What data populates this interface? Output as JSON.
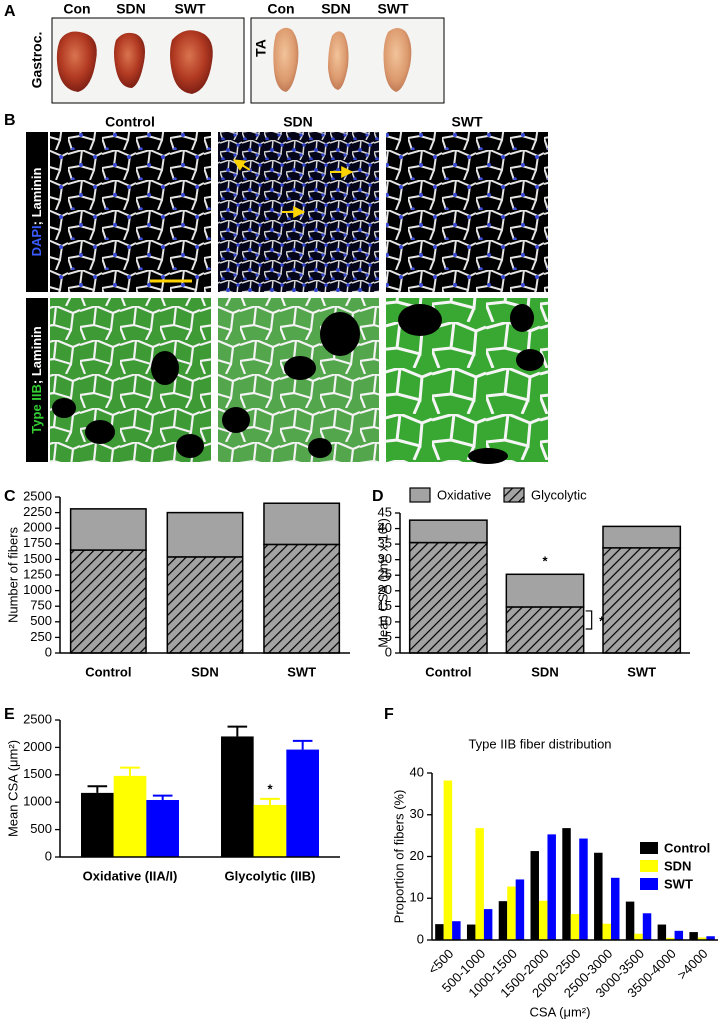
{
  "panel_labels": [
    "A",
    "B",
    "C",
    "D",
    "E",
    "F"
  ],
  "panel_a": {
    "left": {
      "label": "Gastroc.",
      "columns": [
        "Con",
        "SDN",
        "SWT"
      ]
    },
    "right": {
      "label": "TA",
      "columns": [
        "Con",
        "SDN",
        "SWT"
      ]
    }
  },
  "panel_b": {
    "columns": [
      "Control",
      "SDN",
      "SWT"
    ],
    "rows": [
      [
        "DAPI",
        "; Laminin"
      ],
      [
        "Type IIB",
        "; Laminin"
      ]
    ]
  },
  "chart_data": [
    {
      "type": "bar",
      "stacked": true,
      "ylabel": "Number of fibers",
      "categories": [
        "Control",
        "SDN",
        "SWT"
      ],
      "series": [
        {
          "color": "#a3a3a3",
          "hatch": true,
          "values": [
            1650,
            1540,
            1740
          ]
        },
        {
          "color": "#a3a3a3",
          "values": [
            660,
            710,
            660
          ]
        }
      ],
      "ylim": [
        0,
        2500
      ],
      "yticks": [
        0,
        250,
        500,
        750,
        1000,
        1250,
        1500,
        1750,
        2000,
        2250,
        2500
      ]
    },
    {
      "type": "bar",
      "stacked": true,
      "ylabel": "Mean CSA (μm² x 10³)",
      "categories": [
        "Control",
        "SDN",
        "SWT"
      ],
      "series": [
        {
          "name": "Glycolytic",
          "color": "#a3a3a3",
          "hatch": true,
          "values": [
            35.5,
            14.8,
            33.8
          ]
        },
        {
          "name": "Oxidative",
          "color": "#a3a3a3",
          "values": [
            7.2,
            10.5,
            6.9
          ]
        }
      ],
      "ylim": [
        0,
        45
      ],
      "yticks": [
        0,
        5,
        10,
        15,
        20,
        25,
        30,
        35,
        40,
        45
      ],
      "legend": "top",
      "annotations": [
        "*",
        "*"
      ]
    },
    {
      "type": "bar",
      "ylabel": "Mean CSA (μm²)",
      "categories": [
        "Oxidative (IIA/I)",
        "Glycolytic (IIB)"
      ],
      "series": [
        {
          "color": "#000000",
          "values": [
            1170,
            2200
          ],
          "errors": [
            120,
            180
          ]
        },
        {
          "color": "#ffff00",
          "values": [
            1480,
            950
          ],
          "errors": [
            150,
            110
          ]
        },
        {
          "color": "#0000ff",
          "values": [
            1040,
            1960
          ],
          "errors": [
            80,
            160
          ]
        }
      ],
      "ylim": [
        0,
        2500
      ],
      "yticks": [
        0,
        500,
        1000,
        1500,
        2000,
        2500
      ],
      "annotations": [
        "*"
      ]
    },
    {
      "type": "bar",
      "title": "Type IIB fiber distribution",
      "xlabel": "CSA (μm²)",
      "ylabel": "Proportion of fibers (%)",
      "categories": [
        "<500",
        "500-1000",
        "1000-1500",
        "1500-2000",
        "2000-2500",
        "2500-3000",
        "3000-3500",
        "3500-4000",
        ">4000"
      ],
      "series": [
        {
          "name": "Control",
          "color": "#000000",
          "values": [
            3.8,
            3.7,
            9.3,
            21.3,
            26.8,
            20.9,
            9.2,
            3.7,
            1.9
          ]
        },
        {
          "name": "SDN",
          "color": "#ffff00",
          "values": [
            38.2,
            26.8,
            12.8,
            9.4,
            6.2,
            3.9,
            1.5,
            0.5,
            0.6
          ]
        },
        {
          "name": "SWT",
          "color": "#0000ff",
          "values": [
            4.5,
            7.4,
            14.5,
            25.3,
            24.3,
            14.9,
            6.4,
            2.2,
            0.9
          ]
        }
      ],
      "ylim": [
        0,
        40
      ],
      "yticks": [
        0,
        10,
        20,
        30,
        40
      ],
      "legend": "right"
    }
  ]
}
